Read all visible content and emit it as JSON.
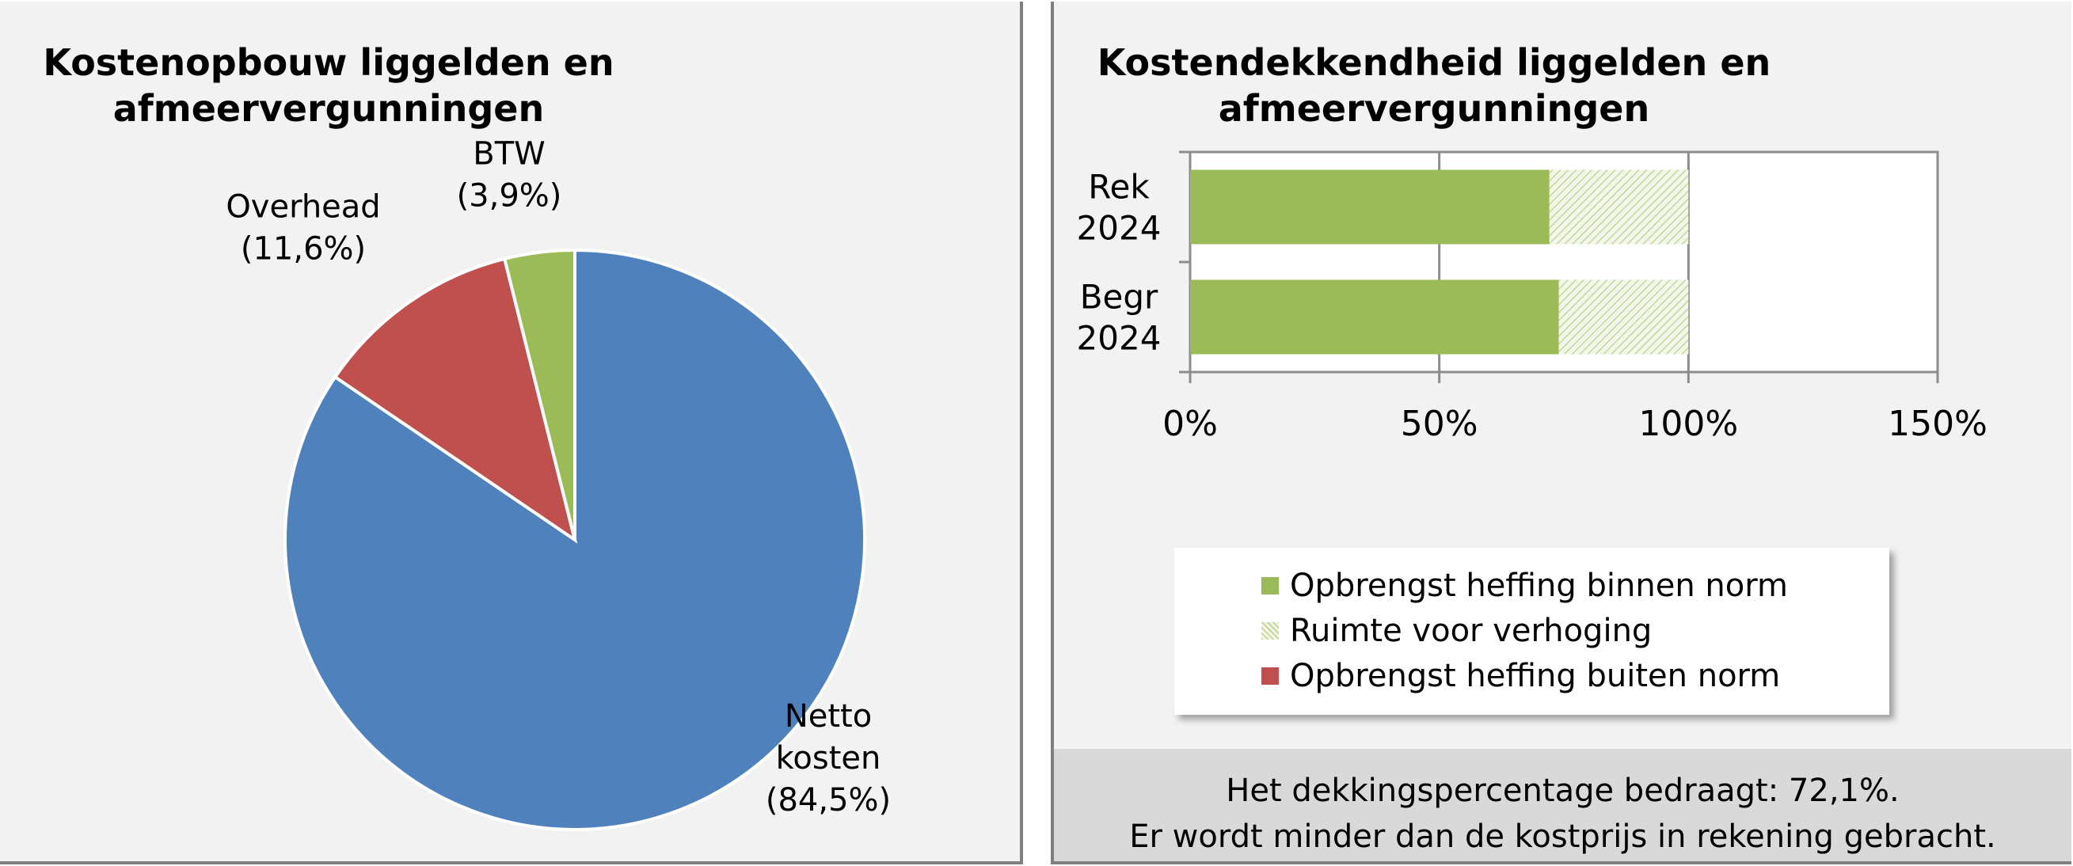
{
  "chart_data": [
    {
      "type": "pie",
      "title": "Kostenopbouw liggelden en afmeervergunningen",
      "title_lines": [
        "Kostenopbouw liggelden en",
        "afmeervergunningen"
      ],
      "slices": [
        {
          "label_lines": [
            "Netto",
            "kosten",
            "(84,5%)"
          ],
          "value": 84.5,
          "color": "#4f81bd"
        },
        {
          "label_lines": [
            "Overhead",
            "(11,6%)"
          ],
          "value": 11.6,
          "color": "#c0504d"
        },
        {
          "label_lines": [
            "BTW",
            "(3,9%)"
          ],
          "value": 3.9,
          "color": "#9bbb59"
        }
      ]
    },
    {
      "type": "bar",
      "orientation": "horizontal",
      "stacked": true,
      "title": "Kostendekkendheid liggelden en afmeervergunningen",
      "title_lines": [
        "Kostendekkendheid liggelden en",
        "afmeervergunningen"
      ],
      "categories": [
        {
          "lines": [
            "Rek",
            "2024"
          ]
        },
        {
          "lines": [
            "Begr",
            "2024"
          ]
        }
      ],
      "series": [
        {
          "name": "Opbrengst heffing binnen norm",
          "values": [
            72.1,
            74
          ],
          "color": "#9bbb59"
        },
        {
          "name": "Ruimte voor verhoging",
          "values": [
            27.9,
            26
          ],
          "color": "#d7e4bd",
          "pattern": "hatched"
        },
        {
          "name": "Opbrengst heffing buiten norm",
          "values": [
            0,
            0
          ],
          "color": "#c0504d"
        }
      ],
      "xlim": [
        0,
        150
      ],
      "xticks": [
        0,
        50,
        100,
        150
      ],
      "xtick_labels": [
        "0%",
        "50%",
        "100%",
        "150%"
      ],
      "grid": true,
      "legend_position": "bottom"
    }
  ],
  "footer": {
    "line1": "Het dekkingspercentage bedraagt: 72,1%.",
    "line2": "Er wordt minder dan de kostprijs in rekening gebracht."
  }
}
